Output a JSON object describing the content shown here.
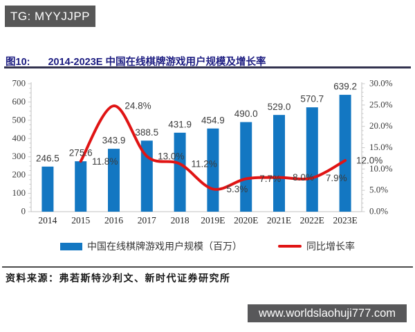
{
  "header": {
    "badge": "TG: MYYJJPP",
    "figure_label": "图10:",
    "title": "2014-2023E 中国在线棋牌游戏用户规模及增长率"
  },
  "chart_data": {
    "type": "bar",
    "subtype": "bar+line combo",
    "categories": [
      "2014",
      "2015",
      "2016",
      "2017",
      "2018",
      "2019E",
      "2020E",
      "2021E",
      "2022E",
      "2023E"
    ],
    "series": [
      {
        "name": "中国在线棋牌游戏用户规模（百万）",
        "type": "bar",
        "axis": "left",
        "color": "#1377c2",
        "values": [
          246.5,
          275.6,
          343.9,
          388.5,
          431.9,
          454.9,
          490.0,
          529.0,
          570.7,
          639.2
        ]
      },
      {
        "name": "同比增长率",
        "type": "line",
        "axis": "right",
        "color": "#e01414",
        "values": [
          null,
          11.8,
          24.8,
          13.0,
          11.2,
          5.3,
          7.7,
          8.0,
          7.9,
          12.0
        ]
      }
    ],
    "left_axis": {
      "min": 0,
      "max": 700,
      "step": 100,
      "minor_step": 25
    },
    "right_axis": {
      "min": 0,
      "max": 30,
      "step": 5,
      "minor_step": 1,
      "suffix": "%"
    },
    "grid": false,
    "data_labels": true,
    "legend_position": "bottom",
    "title": "2014-2023E 中国在线棋牌游戏用户规模及增长率"
  },
  "footer": {
    "source_label": "资料来源：",
    "source_text": "弗若斯特沙利文、新时代证券研究所",
    "website": "www.worldslaohuji777.com"
  },
  "colors": {
    "bar": "#1377c2",
    "line": "#e01414",
    "title_text": "#1b1b80",
    "badge_bg": "#58585a",
    "axis_line": "#bfbfbf",
    "tick": "#c9c9c9",
    "axis_text": "#3a3a3a",
    "label_text": "#3b3b3b"
  }
}
